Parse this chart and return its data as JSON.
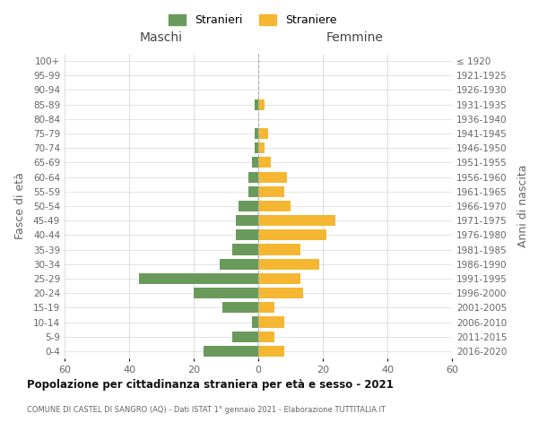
{
  "age_groups": [
    "0-4",
    "5-9",
    "10-14",
    "15-19",
    "20-24",
    "25-29",
    "30-34",
    "35-39",
    "40-44",
    "45-49",
    "50-54",
    "55-59",
    "60-64",
    "65-69",
    "70-74",
    "75-79",
    "80-84",
    "85-89",
    "90-94",
    "95-99",
    "100+"
  ],
  "birth_years": [
    "2016-2020",
    "2011-2015",
    "2006-2010",
    "2001-2005",
    "1996-2000",
    "1991-1995",
    "1986-1990",
    "1981-1985",
    "1976-1980",
    "1971-1975",
    "1966-1970",
    "1961-1965",
    "1956-1960",
    "1951-1955",
    "1946-1950",
    "1941-1945",
    "1936-1940",
    "1931-1935",
    "1926-1930",
    "1921-1925",
    "≤ 1920"
  ],
  "males": [
    17,
    8,
    2,
    11,
    20,
    37,
    12,
    8,
    7,
    7,
    6,
    3,
    3,
    2,
    1,
    1,
    0,
    1,
    0,
    0,
    0
  ],
  "females": [
    8,
    5,
    8,
    5,
    14,
    13,
    19,
    13,
    21,
    24,
    10,
    8,
    9,
    4,
    2,
    3,
    0,
    2,
    0,
    0,
    0
  ],
  "color_males": "#6a9a5b",
  "color_females": "#f5b731",
  "title": "Popolazione per cittadinanza straniera per età e sesso - 2021",
  "subtitle": "COMUNE DI CASTEL DI SANGRO (AQ) - Dati ISTAT 1° gennaio 2021 - Elaborazione TUTTITALIA.IT",
  "ylabel_left": "Fasce di età",
  "ylabel_right": "Anni di nascita",
  "xlabel_left": "Maschi",
  "xlabel_right": "Femmine",
  "legend_males": "Stranieri",
  "legend_females": "Straniere",
  "xlim": 60,
  "bg_color": "#ffffff",
  "grid_color": "#d0d0d0"
}
